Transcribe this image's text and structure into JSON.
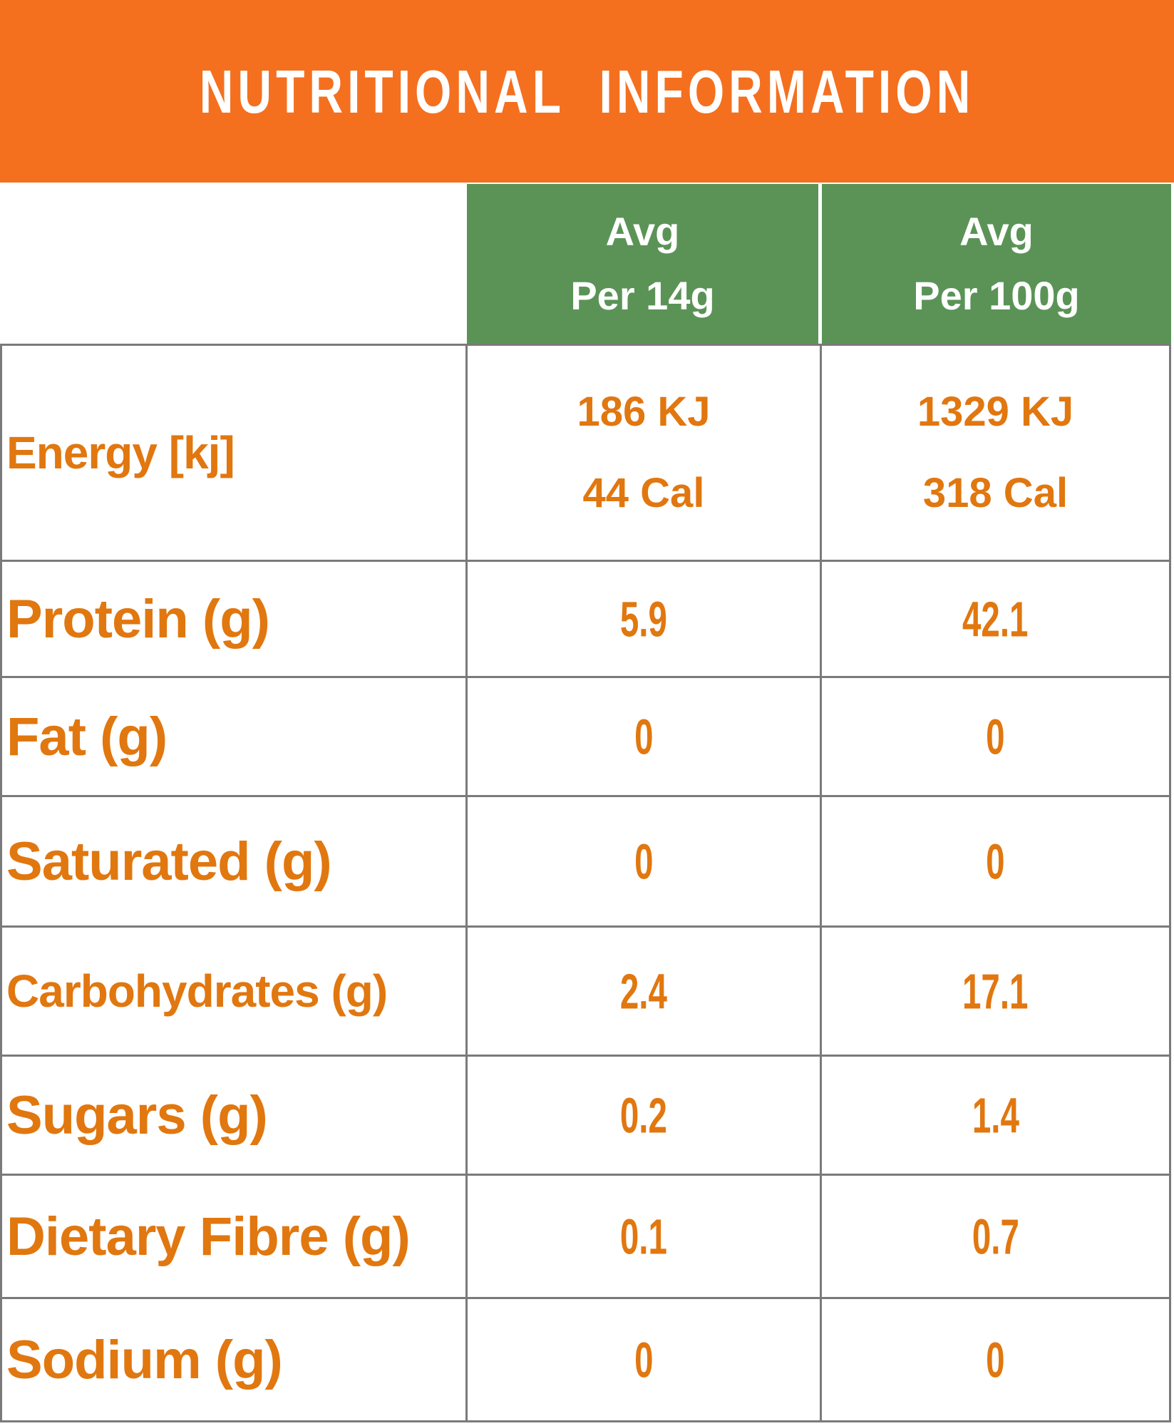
{
  "title": "NUTRITIONAL  INFORMATION",
  "columns": {
    "per14g": {
      "line1": "Avg",
      "line2": "Per 14g"
    },
    "per100g": {
      "line1": "Avg",
      "line2": "Per 100g"
    }
  },
  "rows": [
    {
      "label": "Energy [kj]",
      "per14_line1": "186 KJ",
      "per14_line2": "44 Cal",
      "per100_line1": "1329 KJ",
      "per100_line2": "318 Cal"
    },
    {
      "label": "Protein (g)",
      "per14": "5.9",
      "per100": "42.1"
    },
    {
      "label": "Fat (g)",
      "per14": "0",
      "per100": "0"
    },
    {
      "label": "Saturated (g)",
      "per14": "0",
      "per100": "0"
    },
    {
      "label": "Carbohydrates (g)",
      "per14": "2.4",
      "per100": "17.1"
    },
    {
      "label": "Sugars (g)",
      "per14": "0.2",
      "per100": "1.4"
    },
    {
      "label": "Dietary Fibre (g)",
      "per14": "0.1",
      "per100": "0.7"
    },
    {
      "label": "Sodium (g)",
      "per14": "0",
      "per100": "0"
    }
  ],
  "colors": {
    "banner_orange": "#F4701F",
    "text_orange": "#E1770F",
    "header_green": "#5B9357",
    "border_gray": "#7A7A7A",
    "background": "#FFFFFF"
  }
}
